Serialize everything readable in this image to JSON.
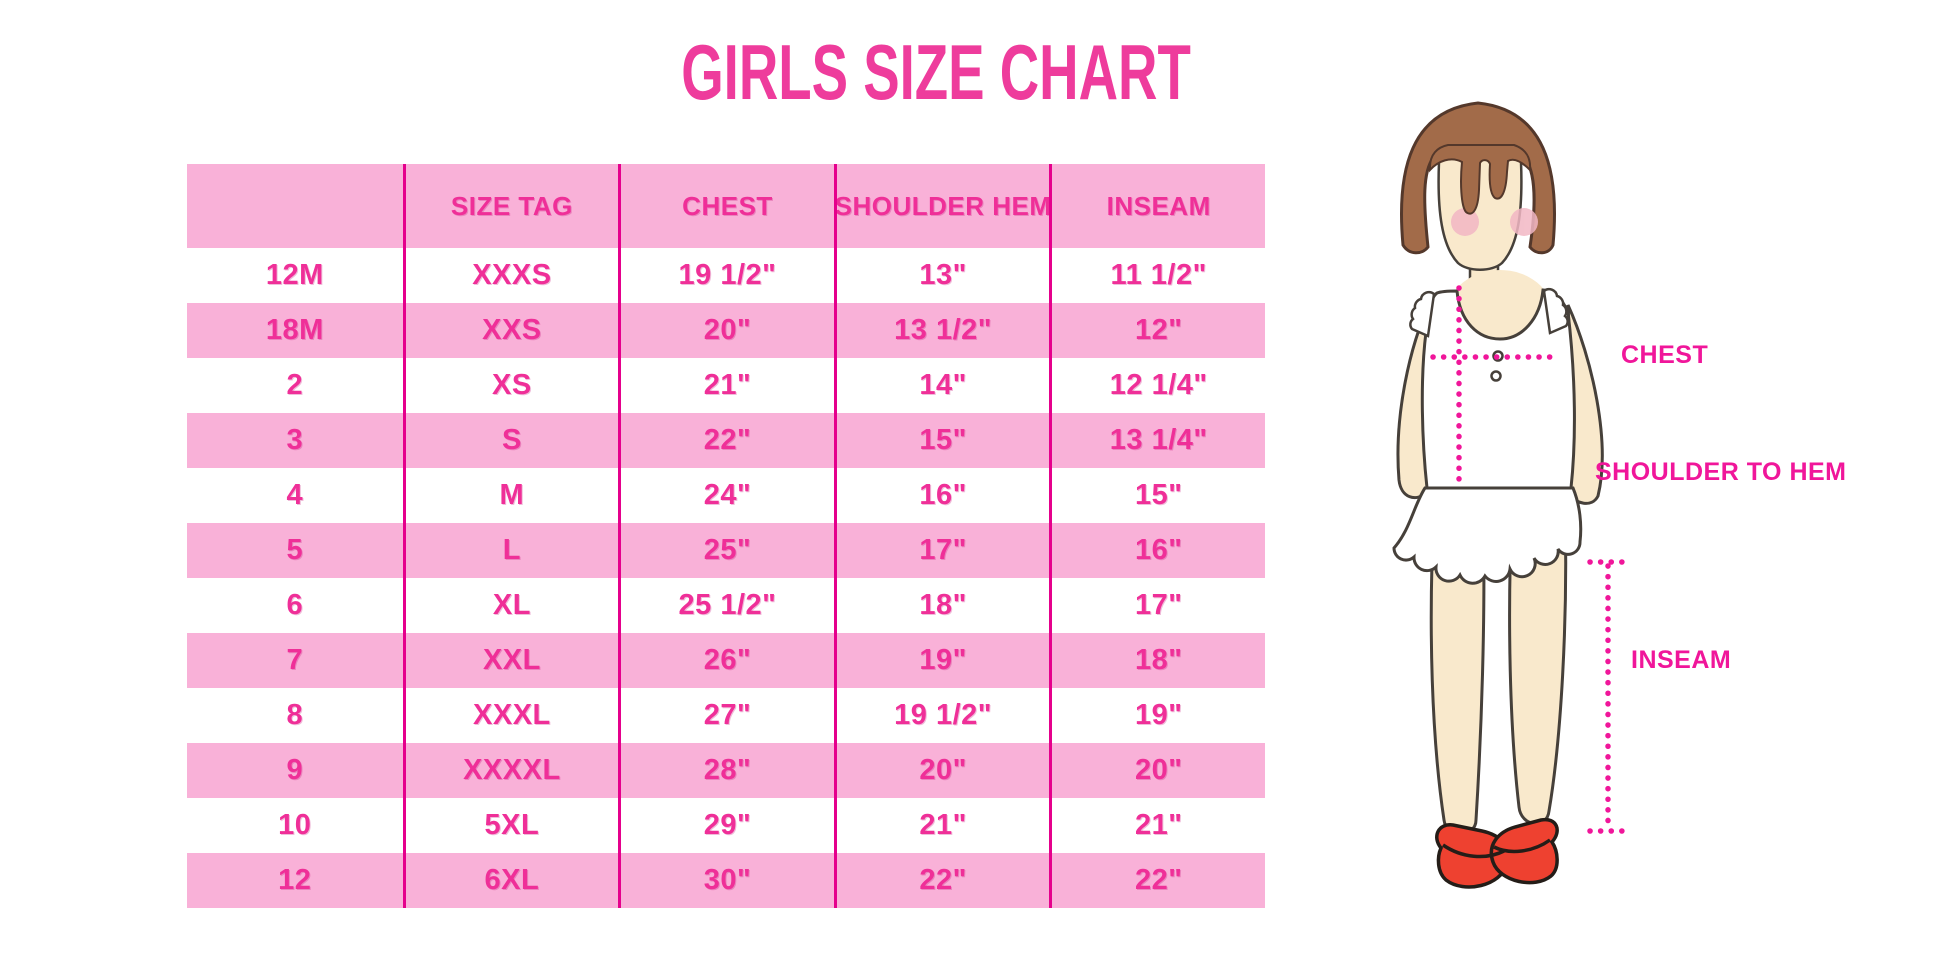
{
  "title": "GIRLS SIZE CHART",
  "chart_data": {
    "type": "table",
    "title": "GIRLS SIZE CHART",
    "columns": [
      "",
      "SIZE TAG",
      "CHEST",
      "SHOULDER HEM",
      "INSEAM"
    ],
    "rows": [
      [
        "12M",
        "XXXS",
        "19 1/2\"",
        "13\"",
        "11 1/2\""
      ],
      [
        "18M",
        "XXS",
        "20\"",
        "13 1/2\"",
        "12\""
      ],
      [
        "2",
        "XS",
        "21\"",
        "14\"",
        "12 1/4\""
      ],
      [
        "3",
        "S",
        "22\"",
        "15\"",
        "13 1/4\""
      ],
      [
        "4",
        "M",
        "24\"",
        "16\"",
        "15\""
      ],
      [
        "5",
        "L",
        "25\"",
        "17\"",
        "16\""
      ],
      [
        "6",
        "XL",
        "25 1/2\"",
        "18\"",
        "17\""
      ],
      [
        "7",
        "XXL",
        "26\"",
        "19\"",
        "18\""
      ],
      [
        "8",
        "XXXL",
        "27\"",
        "19 1/2\"",
        "19\""
      ],
      [
        "9",
        "XXXXL",
        "28\"",
        "20\"",
        "20\""
      ],
      [
        "10",
        "5XL",
        "29\"",
        "21\"",
        "21\""
      ],
      [
        "12",
        "6XL",
        "30\"",
        "22\"",
        "22\""
      ]
    ]
  },
  "figure_labels": {
    "chest": "CHEST",
    "shoulder_to_hem": "SHOULDER TO HEM",
    "inseam": "INSEAM"
  },
  "colors": {
    "title_pink": "#ee3c9c",
    "row_pink": "#f9b1d8",
    "grid_line": "#e5008c",
    "cell_text": "#ef2f98",
    "label_pink": "#f0169a",
    "hair_brown": "#a26b49",
    "skin": "#f9e9cc",
    "blush": "#f2b7c4",
    "shoe_red": "#ee4130",
    "outline_dark": "#46403a"
  }
}
